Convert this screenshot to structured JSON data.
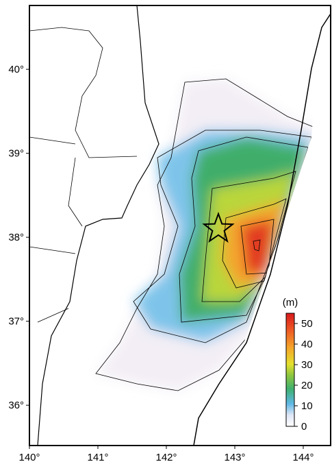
{
  "map": {
    "xlim": [
      140,
      144.4
    ],
    "ylim": [
      35.52,
      40.76
    ],
    "xticks": [
      {
        "value": 140,
        "label": "140°"
      },
      {
        "value": 141,
        "label": "141°"
      },
      {
        "value": 142,
        "label": "142°"
      },
      {
        "value": 143,
        "label": "143°"
      },
      {
        "value": 144,
        "label": "144°"
      }
    ],
    "yticks": [
      {
        "value": 36,
        "label": "36°"
      },
      {
        "value": 37,
        "label": "37°"
      },
      {
        "value": 38,
        "label": "38°"
      },
      {
        "value": 39,
        "label": "39°"
      },
      {
        "value": 40,
        "label": "40°"
      }
    ],
    "colorbar": {
      "title": "(m)",
      "lim": [
        0,
        55
      ],
      "ticks": [
        0,
        10,
        20,
        30,
        40,
        50
      ]
    },
    "epicenter": {
      "lon": 142.76,
      "lat": 38.1
    }
  }
}
